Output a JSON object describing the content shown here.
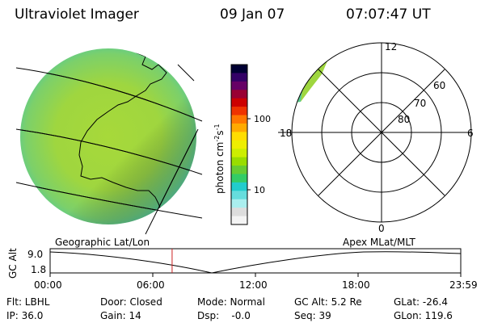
{
  "header": {
    "title": "Ultraviolet Imager",
    "date": "09 Jan 07",
    "time": "07:07:47 UT"
  },
  "colorbar": {
    "unit_label": "photon cm",
    "unit_sup1": "-2",
    "unit_s": "s",
    "unit_sup2": "-1",
    "tick_high": "100",
    "tick_low": "10",
    "colors": [
      "#000033",
      "#330066",
      "#660066",
      "#990033",
      "#cc0000",
      "#ee3300",
      "#ff7700",
      "#ffaa00",
      "#ffdd00",
      "#eeee00",
      "#ccee00",
      "#99dd00",
      "#66cc33",
      "#33cc66",
      "#22cccc",
      "#66dddd",
      "#aaeeee",
      "#dddddd",
      "#f4f4f4"
    ]
  },
  "polar": {
    "labels": {
      "top": "12",
      "bottom": "0",
      "left": "18",
      "right": "6",
      "lat60": "60",
      "lat70": "70",
      "lat80": "80"
    }
  },
  "timeline": {
    "left_title": "Geographic Lat/Lon",
    "right_title": "Apex MLat/MLT",
    "axis_name": "GC Alt",
    "y_max": "9.0",
    "y_min": "1.8",
    "x_ticks": [
      "00:00",
      "06:00",
      "12:00",
      "18:00",
      "23:59"
    ],
    "current_time_hours": 7.13
  },
  "info": {
    "filter": "Flt: LBHL",
    "ip": "IP: 36.0",
    "door": "Door: Closed",
    "gain": "Gain: 14",
    "mode": "Mode: Normal",
    "dsp": "Dsp:    -0.0",
    "gc_alt": "GC Alt: 5.2 Re",
    "seq": "Seq: 39",
    "glat": "GLat: -26.4",
    "glon": "GLon: 119.6"
  }
}
